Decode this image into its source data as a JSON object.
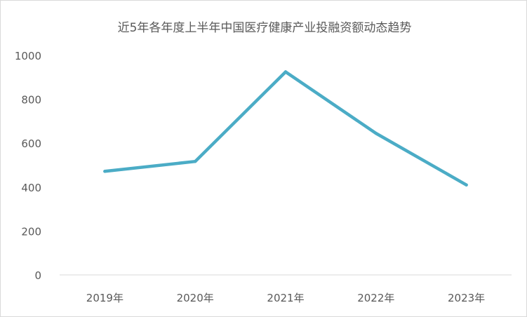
{
  "chart_data": {
    "type": "line",
    "title": "近5年各年度上半年中国医疗健康产业投融资额动态趋势",
    "categories": [
      "2019年",
      "2020年",
      "2021年",
      "2022年",
      "2023年"
    ],
    "series": [
      {
        "values": [
          472,
          517,
          925,
          645,
          410
        ]
      }
    ],
    "yticks": [
      0,
      200,
      400,
      600,
      800,
      1000
    ],
    "ylim": [
      0,
      1000
    ],
    "xlabel": "",
    "ylabel": "",
    "grid": false,
    "legend": "none",
    "colors": {
      "line": "#4bacc6",
      "axis": "#d9d9d9",
      "text": "#595959"
    }
  }
}
